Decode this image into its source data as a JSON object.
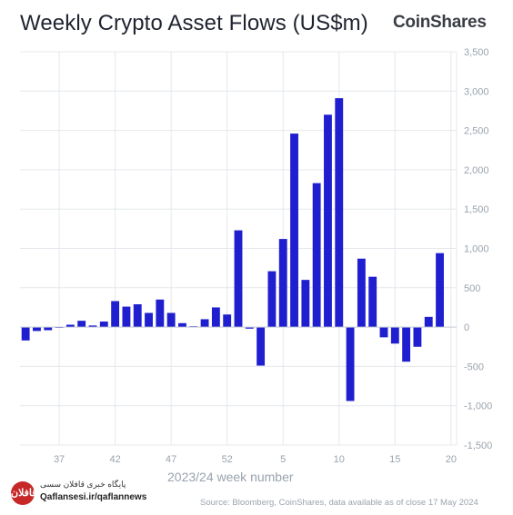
{
  "header": {
    "title": "Weekly Crypto Asset Flows (US$m)",
    "brand": "CoinShares"
  },
  "footer": {
    "source": "Source: Bloomberg, CoinShares, data available as of close 17 May 2024"
  },
  "watermark": {
    "line1": "پایگاه خبری قافلان سسی",
    "line2": "Qaflansesi.ir/qaflannews",
    "badge": "قافلان"
  },
  "colors": {
    "bar": "#1f1fcf",
    "grid": "#e4e8ec",
    "axis_text": "#9aa3ad"
  },
  "chart_data": {
    "type": "bar",
    "title": "Weekly Crypto Asset Flows (US$m)",
    "xlabel": "2023/24 week number",
    "ylabel": "",
    "ylim": [
      -1500,
      3500
    ],
    "yticks": [
      3500,
      3000,
      2500,
      2000,
      1500,
      1000,
      500,
      0,
      -500,
      -1000,
      -1500
    ],
    "ytick_labels": [
      "3,500",
      "3,000",
      "2,500",
      "2,000",
      "1,500",
      "1,000",
      "500",
      "0",
      "-500",
      "-1,000",
      "-1,500"
    ],
    "xtick_labels": [
      "37",
      "42",
      "47",
      "52",
      "5",
      "10",
      "15",
      "20"
    ],
    "xtick_positions": [
      "37",
      "42",
      "47",
      "52",
      "5",
      "10",
      "15",
      "20"
    ],
    "grid": true,
    "categories": [
      "34",
      "35",
      "36",
      "37",
      "38",
      "39",
      "40",
      "41",
      "42",
      "43",
      "44",
      "45",
      "46",
      "47",
      "48",
      "49",
      "50",
      "51",
      "52",
      "1",
      "2",
      "3",
      "4",
      "5",
      "6",
      "7",
      "8",
      "9",
      "10",
      "11",
      "12",
      "13",
      "14",
      "15",
      "16",
      "17",
      "18",
      "19",
      "20"
    ],
    "values": [
      -170,
      -50,
      -40,
      -10,
      30,
      80,
      20,
      70,
      330,
      260,
      290,
      180,
      350,
      180,
      50,
      10,
      100,
      250,
      160,
      1230,
      -20,
      -490,
      710,
      1120,
      2460,
      600,
      1830,
      2700,
      2910,
      -940,
      870,
      640,
      -130,
      -210,
      -440,
      -250,
      130,
      940,
      0
    ]
  }
}
